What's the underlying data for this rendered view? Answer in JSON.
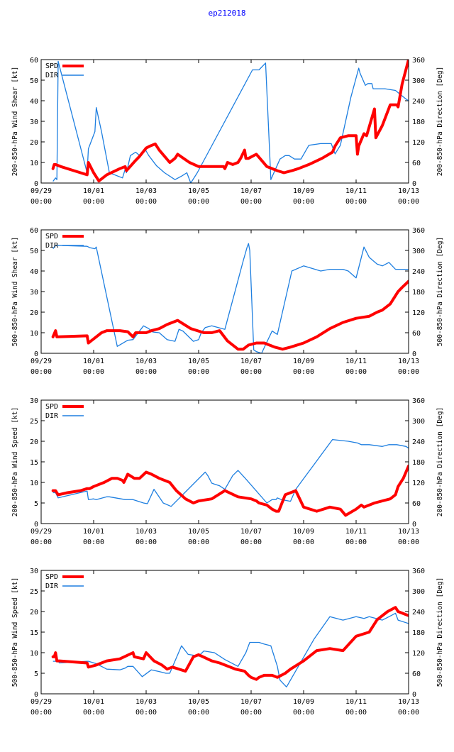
{
  "title": "ep212018",
  "colors": {
    "spd": "#ff0000",
    "dir": "#1e7fe0",
    "title": "#0000ff"
  },
  "chart_data": [
    {
      "type": "line",
      "title": "ep212018",
      "ylabel_left": "200-850-hPa Wind Shear [kt]",
      "ylabel_right": "200-850-hPa Direction [Deg]",
      "x_unit": "days since 09/29 00:00",
      "xlim": [
        0,
        14
      ],
      "ylim_left": [
        0,
        60
      ],
      "yticks_left": [
        0,
        10,
        20,
        30,
        40,
        50,
        60
      ],
      "ylim_right": [
        0,
        360
      ],
      "yticks_right": [
        0,
        60,
        120,
        180,
        240,
        300,
        360
      ],
      "xticks": [
        [
          0,
          "09/29",
          "00:00"
        ],
        [
          2,
          "10/01",
          "00:00"
        ],
        [
          4,
          "10/03",
          "00:00"
        ],
        [
          6,
          "10/05",
          "00:00"
        ],
        [
          8,
          "10/07",
          "00:00"
        ],
        [
          10,
          "10/09",
          "00:00"
        ],
        [
          12,
          "10/11",
          "00:00"
        ],
        [
          14,
          "10/13",
          "00:00"
        ]
      ],
      "legend": [
        "SPD",
        "DIR"
      ],
      "series": [
        {
          "name": "SPD",
          "axis": "left",
          "x": [
            0.45,
            0.5,
            0.55,
            0.75,
            1.25,
            1.75,
            1.8,
            2.0,
            2.2,
            2.5,
            3.0,
            3.2,
            3.25,
            3.6,
            3.75,
            4.0,
            4.15,
            4.35,
            4.5,
            4.9,
            5.1,
            5.2,
            5.65,
            6.0,
            6.5,
            6.95,
            7.0,
            7.1,
            7.3,
            7.5,
            7.6,
            7.75,
            7.8,
            7.9,
            8.2,
            8.4,
            8.6,
            9.0,
            9.25,
            9.55,
            9.8,
            10.2,
            10.7,
            11.1,
            11.2,
            11.4,
            11.7,
            12.0,
            12.05,
            12.1,
            12.3,
            12.4,
            12.7,
            12.75,
            13.0,
            13.3,
            13.55,
            13.6,
            13.75,
            14.0
          ],
          "values": [
            7,
            9,
            9,
            8,
            6,
            4,
            10,
            5,
            1,
            4,
            7,
            8,
            6,
            11,
            13,
            17,
            18,
            19,
            16,
            10,
            12,
            14,
            10,
            8,
            8,
            8,
            7,
            10,
            9,
            10,
            12,
            16,
            12,
            12,
            14,
            11,
            8,
            6,
            5,
            6,
            7,
            9,
            12,
            15,
            18,
            22,
            23,
            23,
            14,
            18,
            24,
            23,
            36,
            22,
            28,
            38,
            38,
            37,
            48,
            60
          ]
        },
        {
          "name": "DIR",
          "axis": "right",
          "x": [
            0.45,
            0.55,
            0.6,
            0.65,
            1.75,
            1.8,
            2.05,
            2.1,
            2.3,
            2.6,
            3.1,
            3.2,
            3.25,
            3.4,
            3.6,
            3.75,
            3.95,
            4.1,
            4.4,
            4.7,
            5.1,
            5.35,
            5.55,
            5.7,
            5.95,
            8.05,
            8.3,
            8.55,
            8.7,
            8.75,
            9.1,
            9.3,
            9.45,
            9.65,
            9.9,
            10.2,
            10.65,
            11.05,
            11.2,
            11.4,
            11.8,
            12.1,
            12.15,
            12.35,
            12.45,
            12.6,
            12.65,
            13.1,
            13.5,
            13.9,
            14.0
          ],
          "values": [
            5,
            15,
            10,
            355,
            30,
            100,
            150,
            220,
            150,
            30,
            15,
            40,
            30,
            80,
            90,
            80,
            100,
            80,
            50,
            30,
            10,
            20,
            30,
            0,
            30,
            330,
            330,
            350,
            100,
            10,
            70,
            80,
            80,
            70,
            70,
            110,
            115,
            115,
            85,
            110,
            250,
            335,
            320,
            285,
            290,
            290,
            275,
            275,
            270,
            245,
            240
          ]
        }
      ]
    },
    {
      "type": "line",
      "ylabel_left": "500-850-hPa Wind Shear [kt]",
      "ylabel_right": "500-850-hPa Direction [Deg]",
      "x_unit": "days since 09/29 00:00",
      "xlim": [
        0,
        14
      ],
      "ylim_left": [
        0,
        60
      ],
      "yticks_left": [
        0,
        10,
        20,
        30,
        40,
        50,
        60
      ],
      "ylim_right": [
        0,
        360
      ],
      "yticks_right": [
        0,
        60,
        120,
        180,
        240,
        300,
        360
      ],
      "xticks": [
        [
          0,
          "09/29",
          "00:00"
        ],
        [
          2,
          "10/01",
          "00:00"
        ],
        [
          4,
          "10/03",
          "00:00"
        ],
        [
          6,
          "10/05",
          "00:00"
        ],
        [
          8,
          "10/07",
          "00:00"
        ],
        [
          10,
          "10/09",
          "00:00"
        ],
        [
          12,
          "10/11",
          "00:00"
        ],
        [
          14,
          "10/13",
          "00:00"
        ]
      ],
      "legend": [
        "SPD",
        "DIR"
      ],
      "series": [
        {
          "name": "SPD",
          "axis": "left",
          "x": [
            0.45,
            0.55,
            0.6,
            0.65,
            1.75,
            1.8,
            2.3,
            2.5,
            3.0,
            3.3,
            3.5,
            3.6,
            4.0,
            4.2,
            4.5,
            4.8,
            5.2,
            5.7,
            6.2,
            6.5,
            6.8,
            7.1,
            7.5,
            7.7,
            7.8,
            7.9,
            8.2,
            8.5,
            8.9,
            9.2,
            9.5,
            10.0,
            10.5,
            11.0,
            11.5,
            12.0,
            12.5,
            12.8,
            13.0,
            13.3,
            13.6,
            13.75,
            14.0
          ],
          "values": [
            8,
            11,
            8,
            8,
            8.5,
            5,
            10,
            11,
            11,
            10.5,
            8,
            10,
            10,
            11,
            12,
            14,
            16,
            12,
            10,
            10,
            11,
            6,
            2,
            2,
            3,
            4,
            5,
            5,
            3,
            2,
            3,
            5,
            8,
            12,
            15,
            17,
            18,
            20,
            21,
            24,
            30,
            32,
            35
          ]
        },
        {
          "name": "DIR",
          "axis": "right",
          "x": [
            0.45,
            0.55,
            0.6,
            1.75,
            1.85,
            2.05,
            2.1,
            2.9,
            3.3,
            3.5,
            3.9,
            4.1,
            4.25,
            4.5,
            4.8,
            5.1,
            5.25,
            5.4,
            5.8,
            6.0,
            6.1,
            6.25,
            6.5,
            7.0,
            7.7,
            7.85,
            7.9,
            7.95,
            8.1,
            8.2,
            8.4,
            8.55,
            8.8,
            9.0,
            9.55,
            10.0,
            10.65,
            11.0,
            11.5,
            11.7,
            12.0,
            12.3,
            12.5,
            12.8,
            13.0,
            13.25,
            13.5,
            13.8,
            14.0
          ],
          "values": [
            305,
            315,
            315,
            312,
            308,
            305,
            310,
            20,
            38,
            40,
            80,
            72,
            62,
            60,
            40,
            35,
            70,
            65,
            35,
            40,
            60,
            75,
            80,
            70,
            270,
            310,
            320,
            300,
            10,
            5,
            0,
            25,
            65,
            55,
            240,
            255,
            240,
            245,
            245,
            240,
            220,
            310,
            280,
            260,
            255,
            265,
            245,
            245,
            245
          ]
        }
      ]
    },
    {
      "type": "line",
      "ylabel_left": "200-850-hPa Wind Speed [kt]",
      "ylabel_right": "200-850-hPa Direction [Deg]",
      "x_unit": "days since 09/29 00:00",
      "xlim": [
        0,
        14
      ],
      "ylim_left": [
        0,
        30
      ],
      "yticks_left": [
        0,
        5,
        10,
        15,
        20,
        25,
        30
      ],
      "ylim_right": [
        0,
        360
      ],
      "yticks_right": [
        0,
        60,
        120,
        180,
        240,
        300,
        360
      ],
      "xticks": [
        [
          0,
          "09/29",
          "00:00"
        ],
        [
          2,
          "10/01",
          "00:00"
        ],
        [
          4,
          "10/03",
          "00:00"
        ],
        [
          6,
          "10/05",
          "00:00"
        ],
        [
          8,
          "10/07",
          "00:00"
        ],
        [
          10,
          "10/09",
          "00:00"
        ],
        [
          12,
          "10/11",
          "00:00"
        ],
        [
          14,
          "10/13",
          "00:00"
        ]
      ],
      "legend": [
        "SPD",
        "DIR"
      ],
      "series": [
        {
          "name": "SPD",
          "axis": "left",
          "x": [
            0.45,
            0.55,
            0.65,
            1.0,
            1.5,
            1.75,
            1.85,
            2.0,
            2.4,
            2.7,
            2.9,
            3.1,
            3.15,
            3.3,
            3.55,
            3.7,
            3.75,
            4.0,
            4.2,
            4.5,
            4.9,
            5.15,
            5.5,
            5.8,
            6.0,
            6.5,
            7.0,
            7.5,
            8.0,
            8.2,
            8.3,
            8.6,
            8.8,
            8.95,
            9.05,
            9.3,
            9.7,
            10.0,
            10.5,
            11.0,
            11.4,
            11.6,
            12.0,
            12.2,
            12.3,
            12.7,
            13.3,
            13.5,
            13.6,
            13.8,
            14.0
          ],
          "values": [
            8,
            8,
            7,
            7.5,
            8,
            8.5,
            8.5,
            9,
            10,
            11,
            11,
            10.5,
            10,
            12,
            11,
            11,
            11,
            12.5,
            12,
            11,
            10,
            8,
            6,
            5,
            5.5,
            6,
            8,
            6.5,
            6,
            5.5,
            5,
            4.5,
            3.5,
            3,
            3,
            7,
            8,
            4,
            3,
            4,
            3.5,
            2,
            3.5,
            4.5,
            4,
            5,
            6,
            7,
            9,
            11,
            14
          ]
        },
        {
          "name": "DIR",
          "axis": "right",
          "x": [
            0.45,
            0.55,
            0.65,
            1.75,
            1.8,
            2.0,
            2.1,
            2.5,
            2.6,
            3.2,
            3.5,
            3.9,
            4.05,
            4.3,
            4.65,
            4.95,
            6.25,
            6.35,
            6.5,
            6.6,
            6.8,
            7.0,
            7.3,
            7.5,
            7.8,
            8.6,
            8.8,
            8.95,
            9.0,
            9.15,
            9.5,
            9.7,
            11.1,
            11.7,
            12.05,
            12.2,
            12.5,
            13.0,
            13.25,
            13.55,
            13.9,
            14.0
          ],
          "values": [
            90,
            90,
            75,
            95,
            70,
            72,
            70,
            78,
            78,
            70,
            70,
            60,
            58,
            100,
            60,
            50,
            150,
            140,
            118,
            115,
            110,
            100,
            140,
            155,
            130,
            60,
            70,
            70,
            75,
            70,
            65,
            100,
            245,
            240,
            235,
            230,
            230,
            225,
            230,
            230,
            225,
            220
          ]
        }
      ]
    },
    {
      "type": "line",
      "ylabel_left": "500-850-hPa Wind Speed [kt]",
      "ylabel_right": "500-850-hPa Direction [Deg]",
      "x_unit": "days since 09/29 00:00",
      "xlim": [
        0,
        14
      ],
      "ylim_left": [
        0,
        30
      ],
      "yticks_left": [
        0,
        5,
        10,
        15,
        20,
        25,
        30
      ],
      "ylim_right": [
        0,
        360
      ],
      "yticks_right": [
        0,
        60,
        120,
        180,
        240,
        300,
        360
      ],
      "xticks": [
        [
          0,
          "09/29",
          "00:00"
        ],
        [
          2,
          "10/01",
          "00:00"
        ],
        [
          4,
          "10/03",
          "00:00"
        ],
        [
          6,
          "10/05",
          "00:00"
        ],
        [
          8,
          "10/07",
          "00:00"
        ],
        [
          10,
          "10/09",
          "00:00"
        ],
        [
          12,
          "10/11",
          "00:00"
        ],
        [
          14,
          "10/13",
          "00:00"
        ]
      ],
      "legend": [
        "SPD",
        "DIR"
      ],
      "series": [
        {
          "name": "SPD",
          "axis": "left",
          "x": [
            0.45,
            0.5,
            0.55,
            0.6,
            0.7,
            1.75,
            1.8,
            2.1,
            2.5,
            3.0,
            3.5,
            3.55,
            3.9,
            4.0,
            4.3,
            4.6,
            4.8,
            5.0,
            5.5,
            5.8,
            6.0,
            6.5,
            6.8,
            7.0,
            7.4,
            7.75,
            7.9,
            8.0,
            8.2,
            8.3,
            8.5,
            8.8,
            9.0,
            9.3,
            9.5,
            10.0,
            10.5,
            11.0,
            11.5,
            12.0,
            12.5,
            12.8,
            13.2,
            13.5,
            13.6,
            14.0
          ],
          "values": [
            9,
            9,
            10,
            8,
            8,
            7.5,
            6.5,
            7,
            8,
            8.5,
            10,
            9,
            8.5,
            10,
            8,
            7,
            6,
            6.5,
            5.5,
            9,
            9.5,
            8,
            7.5,
            7,
            6,
            5.5,
            4.5,
            4,
            3.5,
            4,
            4.5,
            4.5,
            4,
            5,
            6,
            8,
            10.5,
            11,
            10.5,
            14,
            15,
            18,
            20,
            21,
            20,
            19
          ]
        },
        {
          "name": "DIR",
          "axis": "right",
          "x": [
            0.45,
            0.55,
            0.6,
            0.7,
            1.75,
            1.8,
            2.1,
            2.5,
            3.0,
            3.2,
            3.3,
            3.5,
            3.85,
            4.2,
            4.5,
            4.75,
            4.9,
            5.35,
            5.6,
            6.0,
            6.2,
            6.6,
            7.0,
            7.5,
            7.8,
            7.85,
            7.95,
            8.1,
            8.3,
            8.5,
            8.75,
            9.0,
            9.1,
            9.35,
            10.4,
            11.0,
            11.5,
            12.0,
            12.3,
            12.5,
            13.0,
            13.25,
            13.5,
            13.6,
            14.0
          ],
          "values": [
            95,
            95,
            100,
            90,
            95,
            95,
            88,
            72,
            70,
            75,
            80,
            80,
            50,
            70,
            65,
            60,
            60,
            140,
            115,
            110,
            125,
            120,
            100,
            80,
            120,
            130,
            150,
            150,
            150,
            145,
            140,
            80,
            40,
            20,
            160,
            225,
            215,
            225,
            220,
            225,
            215,
            225,
            235,
            215,
            205
          ]
        }
      ]
    }
  ]
}
